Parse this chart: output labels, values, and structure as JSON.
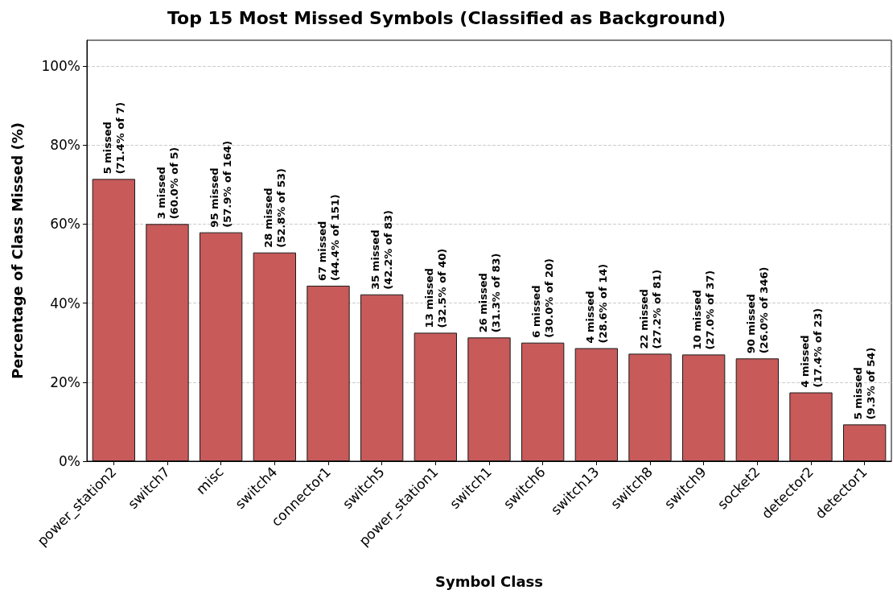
{
  "chart_data": {
    "type": "bar",
    "title": "Top 15 Most Missed Symbols (Classified as Background)",
    "xlabel": "Symbol Class",
    "ylabel": "Percentage of Class Missed (%)",
    "categories": [
      "power_station2",
      "switch7",
      "misc",
      "switch4",
      "connector1",
      "switch5",
      "power_station1",
      "switch1",
      "switch6",
      "switch13",
      "switch8",
      "switch9",
      "socket2",
      "detector2",
      "detector1"
    ],
    "values": [
      71.4,
      60.0,
      57.9,
      52.8,
      44.4,
      42.2,
      32.5,
      31.3,
      30.0,
      28.6,
      27.2,
      27.0,
      26.0,
      17.4,
      9.3
    ],
    "value_labels": [
      "5 missed\n(71.4% of 7)",
      "3 missed\n(60.0% of 5)",
      "95 missed\n(57.9% of 164)",
      "28 missed\n(52.8% of 53)",
      "67 missed\n(44.4% of 151)",
      "35 missed\n(42.2% of 83)",
      "13 missed\n(32.5% of 40)",
      "26 missed\n(31.3% of 83)",
      "6 missed\n(30.0% of 20)",
      "4 missed\n(28.6% of 14)",
      "22 missed\n(27.2% of 81)",
      "10 missed\n(27.0% of 37)",
      "90 missed\n(26.0% of 346)",
      "4 missed\n(17.4% of 23)",
      "5 missed\n(9.3% of 54)"
    ],
    "color": "#c85a5a",
    "ylim": [
      0,
      106.5
    ],
    "yticks": [
      {
        "value": 0,
        "label": "0%"
      },
      {
        "value": 20,
        "label": "20%"
      },
      {
        "value": 40,
        "label": "40%"
      },
      {
        "value": 60,
        "label": "60%"
      },
      {
        "value": 80,
        "label": "80%"
      },
      {
        "value": 100,
        "label": "100%"
      }
    ],
    "grid": "y"
  }
}
